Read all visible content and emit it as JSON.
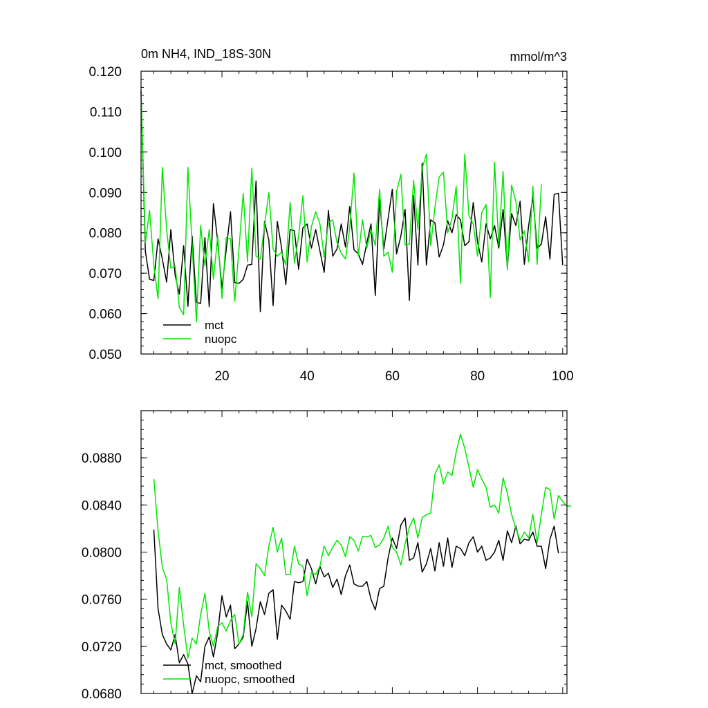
{
  "chart_data": [
    {
      "type": "line",
      "title_left": "0m NH4, IND_18S-30N",
      "title_right": "mmol/m^3",
      "xlabel": "",
      "ylabel": "",
      "xlim": [
        1,
        101
      ],
      "ylim": [
        0.05,
        0.12
      ],
      "x_ticks": [
        20,
        40,
        60,
        80,
        100
      ],
      "x_tick_labels": [
        "20",
        "40",
        "60",
        "80",
        "100"
      ],
      "y_ticks": [
        0.05,
        0.06,
        0.07,
        0.08,
        0.09,
        0.1,
        0.11,
        0.12
      ],
      "y_tick_labels": [
        "0.050",
        "0.060",
        "0.070",
        "0.080",
        "0.090",
        "0.100",
        "0.110",
        "0.120"
      ],
      "legend_position": "bottom-left",
      "series": [
        {
          "name": "mct",
          "color": "#000000",
          "x_start": 1,
          "values": [
            0.115,
            0.0755,
            0.0685,
            0.0682,
            0.0785,
            0.0735,
            0.0678,
            0.0808,
            0.0695,
            0.0648,
            0.0768,
            0.0618,
            0.0792,
            0.0628,
            0.0625,
            0.0788,
            0.0617,
            0.0872,
            0.0778,
            0.0662,
            0.0758,
            0.0852,
            0.0677,
            0.0675,
            0.0685,
            0.072,
            0.0722,
            0.0928,
            0.0605,
            0.0828,
            0.0782,
            0.062,
            0.0828,
            0.0762,
            0.0672,
            0.0808,
            0.0805,
            0.071,
            0.0812,
            0.0822,
            0.0762,
            0.0808,
            0.0755,
            0.0702,
            0.0855,
            0.0742,
            0.076,
            0.0822,
            0.0765,
            0.0865,
            0.0758,
            0.0748,
            0.0722,
            0.0775,
            0.0822,
            0.0645,
            0.0882,
            0.076,
            0.0835,
            0.0908,
            0.0748,
            0.0792,
            0.0858,
            0.0633,
            0.0892,
            0.072,
            0.0972,
            0.072,
            0.0832,
            0.0825,
            0.074,
            0.077,
            0.083,
            0.08,
            0.0845,
            0.0832,
            0.0768,
            0.0778,
            0.0875,
            0.0778,
            0.0728,
            0.0822,
            0.0785,
            0.0818,
            0.0762,
            0.0858,
            0.0713,
            0.0848,
            0.0818,
            0.0878,
            0.0722,
            0.0818,
            0.0888,
            0.0762,
            0.0772,
            0.084,
            0.0735,
            0.0895,
            0.0898,
            0.072
          ]
        },
        {
          "name": "nuopc",
          "color": "#00e600",
          "x_start": 1,
          "values": [
            0.1152,
            0.0775,
            0.0855,
            0.072,
            0.0637,
            0.0962,
            0.0808,
            0.0712,
            0.0718,
            0.0615,
            0.0597,
            0.0962,
            0.0768,
            0.058,
            0.0818,
            0.0718,
            0.0808,
            0.0685,
            0.0792,
            0.0638,
            0.0788,
            0.0785,
            0.063,
            0.0762,
            0.0898,
            0.0728,
            0.096,
            0.0742,
            0.0735,
            0.0818,
            0.09,
            0.076,
            0.0742,
            0.0752,
            0.072,
            0.0875,
            0.0725,
            0.0792,
            0.0892,
            0.0728,
            0.0815,
            0.0852,
            0.0822,
            0.074,
            0.0825,
            0.0832,
            0.0776,
            0.075,
            0.0735,
            0.0812,
            0.0948,
            0.0742,
            0.0832,
            0.0762,
            0.0808,
            0.0768,
            0.0908,
            0.0742,
            0.0752,
            0.0702,
            0.0902,
            0.0945,
            0.077,
            0.0772,
            0.093,
            0.0808,
            0.096,
            0.0995,
            0.0768,
            0.0862,
            0.0938,
            0.095,
            0.08,
            0.0835,
            0.0915,
            0.0675,
            0.0995,
            0.0842,
            0.0822,
            0.0742,
            0.085,
            0.087,
            0.064,
            0.0975,
            0.077,
            0.0952,
            0.0708,
            0.0918,
            0.0878,
            0.0782,
            0.0805,
            0.0728,
            0.0915,
            0.0722,
            0.092
          ]
        }
      ]
    },
    {
      "type": "line",
      "xlabel": "",
      "ylabel": "",
      "xlim": [
        1,
        101
      ],
      "ylim": [
        0.068,
        0.092
      ],
      "x_ticks": [
        20,
        40,
        60,
        80,
        100
      ],
      "y_ticks": [
        0.068,
        0.072,
        0.076,
        0.08,
        0.084,
        0.088
      ],
      "y_tick_labels": [
        "0.0680",
        "0.0720",
        "0.0760",
        "0.0800",
        "0.0840",
        "0.0880"
      ],
      "legend_position": "bottom-left",
      "series": [
        {
          "name": "mct, smoothed",
          "color": "#000000",
          "x_start": 4,
          "values": [
            0.0819,
            0.0752,
            0.073,
            0.0722,
            0.0717,
            0.073,
            0.0706,
            0.0713,
            0.0705,
            0.068,
            0.0695,
            0.069,
            0.072,
            0.0728,
            0.0711,
            0.0732,
            0.0763,
            0.0745,
            0.0755,
            0.0718,
            0.0722,
            0.0728,
            0.0758,
            0.072,
            0.0735,
            0.0758,
            0.0747,
            0.0765,
            0.0768,
            0.0726,
            0.0755,
            0.075,
            0.0743,
            0.0775,
            0.0774,
            0.0775,
            0.0794,
            0.0786,
            0.0773,
            0.0788,
            0.0779,
            0.0782,
            0.077,
            0.0777,
            0.0764,
            0.078,
            0.0789,
            0.0773,
            0.0771,
            0.0771,
            0.0775,
            0.076,
            0.0751,
            0.0769,
            0.0771,
            0.0795,
            0.0812,
            0.0803,
            0.0823,
            0.0829,
            0.0793,
            0.0795,
            0.0808,
            0.0783,
            0.079,
            0.0803,
            0.0784,
            0.0808,
            0.0788,
            0.0812,
            0.0787,
            0.0805,
            0.0803,
            0.0797,
            0.0808,
            0.0813,
            0.08,
            0.0805,
            0.0793,
            0.0795,
            0.08,
            0.081,
            0.0793,
            0.0818,
            0.0808,
            0.0822,
            0.0807,
            0.0811,
            0.081,
            0.0817,
            0.0805,
            0.0805,
            0.0786,
            0.0811,
            0.0822,
            0.0799
          ]
        },
        {
          "name": "nuopc, smoothed",
          "color": "#00e600",
          "x_start": 4,
          "values": [
            0.0862,
            0.0818,
            0.0787,
            0.0777,
            0.074,
            0.0722,
            0.077,
            0.0738,
            0.071,
            0.0727,
            0.0722,
            0.0747,
            0.0765,
            0.0733,
            0.072,
            0.0737,
            0.074,
            0.0733,
            0.0742,
            0.0747,
            0.0722,
            0.073,
            0.0766,
            0.0745,
            0.079,
            0.0786,
            0.078,
            0.0805,
            0.0821,
            0.08,
            0.0812,
            0.0781,
            0.0781,
            0.0805,
            0.079,
            0.0788,
            0.0763,
            0.0783,
            0.0781,
            0.0788,
            0.0805,
            0.0797,
            0.0804,
            0.081,
            0.0806,
            0.0796,
            0.0813,
            0.081,
            0.0801,
            0.0813,
            0.0813,
            0.0814,
            0.0804,
            0.0806,
            0.0812,
            0.0822,
            0.0804,
            0.08,
            0.0789,
            0.0807,
            0.0821,
            0.0829,
            0.0812,
            0.0829,
            0.0832,
            0.0833,
            0.0866,
            0.0874,
            0.0858,
            0.0868,
            0.0865,
            0.0885,
            0.09,
            0.0888,
            0.0872,
            0.0855,
            0.087,
            0.0862,
            0.0855,
            0.0838,
            0.084,
            0.0833,
            0.0863,
            0.085,
            0.0832,
            0.082,
            0.081,
            0.0817,
            0.0812,
            0.0832,
            0.0808,
            0.0832,
            0.0855,
            0.0853,
            0.0828,
            0.0848,
            0.0843,
            0.0839,
            0.0839
          ]
        }
      ]
    }
  ]
}
